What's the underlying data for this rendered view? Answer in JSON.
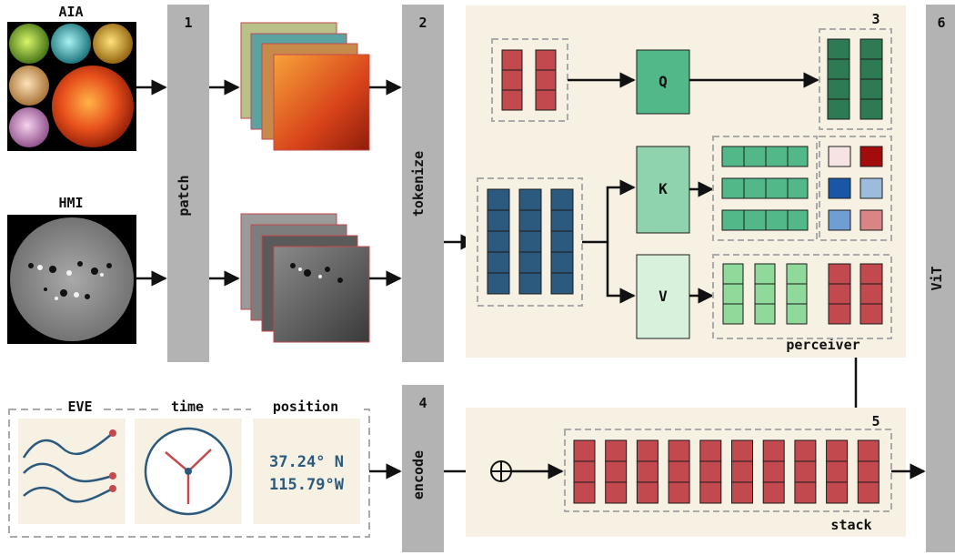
{
  "inputs": {
    "aia_label": "AIA",
    "hmi_label": "HMI",
    "eve_label": "EVE",
    "time_label": "time",
    "position_label": "position",
    "position_lat": "37.24° N",
    "position_lon": "115.79°W"
  },
  "stages": {
    "patch": {
      "number": "1",
      "label": "patch"
    },
    "tokenize": {
      "number": "2",
      "label": "tokenize"
    },
    "perceiver": {
      "number": "3",
      "label": "perceiver"
    },
    "encode": {
      "number": "4",
      "label": "encode"
    },
    "stack": {
      "number": "5",
      "label": "stack"
    },
    "vit": {
      "number": "6",
      "label": "ViT"
    }
  },
  "attention": {
    "q_label": "Q",
    "k_label": "K",
    "v_label": "V"
  },
  "colors": {
    "token_red": "#c24a4f",
    "token_blue": "#2b5a7e",
    "q_green": "#52b889",
    "k_green": "#8fd3ae",
    "v_green": "#d7f1dd",
    "out_green": "#2e7a55",
    "bar_gray": "#b3b3b3",
    "panel_cream": "#f6f1e3"
  }
}
